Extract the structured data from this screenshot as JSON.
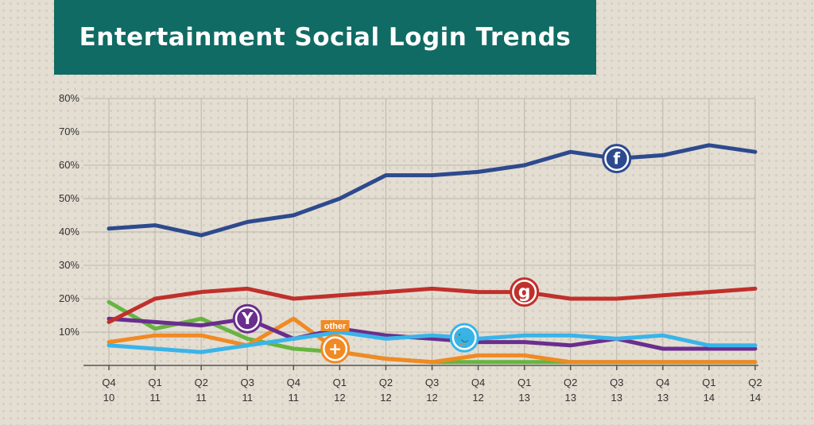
{
  "title": "Entertainment Social Login Trends",
  "chart_data": {
    "type": "line",
    "title": "Entertainment Social Login Trends",
    "xlabel": "",
    "ylabel": "",
    "ylim": [
      0,
      80
    ],
    "y_ticks": [
      "80%",
      "70%",
      "60%",
      "50%",
      "40%",
      "30%",
      "20%",
      "10%"
    ],
    "y_tick_values": [
      80,
      70,
      60,
      50,
      40,
      30,
      20,
      10
    ],
    "categories": [
      [
        "Q4",
        "10"
      ],
      [
        "Q1",
        "11"
      ],
      [
        "Q2",
        "11"
      ],
      [
        "Q3",
        "11"
      ],
      [
        "Q4",
        "11"
      ],
      [
        "Q1",
        "12"
      ],
      [
        "Q2",
        "12"
      ],
      [
        "Q3",
        "12"
      ],
      [
        "Q4",
        "12"
      ],
      [
        "Q1",
        "13"
      ],
      [
        "Q2",
        "13"
      ],
      [
        "Q3",
        "13"
      ],
      [
        "Q4",
        "13"
      ],
      [
        "Q1",
        "14"
      ],
      [
        "Q2",
        "14"
      ]
    ],
    "grid": true,
    "series": [
      {
        "key": "facebook",
        "color": "#2e4a8e",
        "icon": "facebook-icon",
        "icon_glyph": "f",
        "icon_at": 11,
        "values": [
          41,
          42,
          39,
          43,
          45,
          50,
          57,
          57,
          58,
          60,
          64,
          62,
          63,
          66,
          64
        ]
      },
      {
        "key": "google",
        "color": "#c0302b",
        "icon": "google-icon",
        "icon_glyph": "g",
        "icon_at": 9,
        "values": [
          13,
          20,
          22,
          23,
          20,
          21,
          22,
          23,
          22,
          22,
          20,
          20,
          21,
          22,
          23
        ]
      },
      {
        "key": "twitter",
        "color": "#3ab4e8",
        "icon": "twitter-icon",
        "icon_glyph": "🐦",
        "icon_at": 7.7,
        "values": [
          6,
          5,
          4,
          6,
          8,
          10,
          8,
          9,
          8,
          9,
          9,
          8,
          9,
          6,
          6
        ]
      },
      {
        "key": "yahoo",
        "color": "#6a2e8e",
        "icon": "yahoo-icon",
        "icon_glyph": "Y",
        "icon_at": 3,
        "values": [
          14,
          13,
          12,
          14,
          8,
          11,
          9,
          8,
          7,
          7,
          6,
          8,
          5,
          5,
          5
        ]
      },
      {
        "key": "other",
        "color": "#f08a24",
        "icon": "google-plus-icon",
        "icon_glyph": "+",
        "icon_at": 4.9,
        "label": "other",
        "values": [
          7,
          9,
          9,
          6,
          14,
          4,
          2,
          1,
          3,
          3,
          1,
          1,
          1,
          1,
          1
        ]
      },
      {
        "key": "green",
        "color": "#66b540",
        "values": [
          19,
          11,
          14,
          8,
          5,
          4,
          2,
          1,
          1,
          1,
          1,
          1,
          1,
          1,
          1
        ]
      }
    ]
  }
}
